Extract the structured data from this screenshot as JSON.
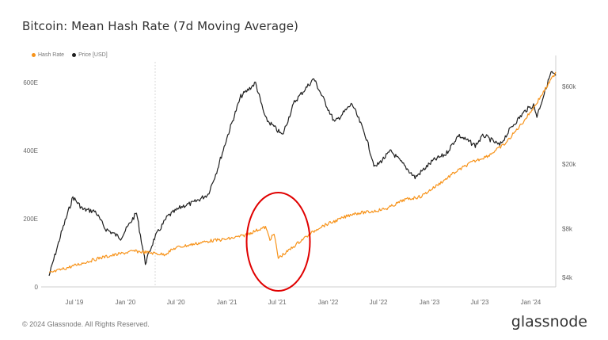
{
  "chart_data": {
    "type": "line",
    "title": "Bitcoin: Mean Hash Rate (7d Moving Average)",
    "x_ticks": [
      "Jul '19",
      "Jan '20",
      "Jul '20",
      "Jan '21",
      "Jul '21",
      "Jan '22",
      "Jul '22",
      "Jan '23",
      "Jul '23",
      "Jan '24"
    ],
    "x_range": [
      "2019-04-01",
      "2024-03-31"
    ],
    "y_left": {
      "ticks": [
        "0",
        "200E",
        "400E",
        "600E"
      ],
      "tick_values": [
        0,
        200,
        400,
        600
      ],
      "range": [
        0,
        660
      ],
      "unit": "EH/s"
    },
    "y_right": {
      "ticks": [
        "$4k",
        "$8k",
        "$20k",
        "$60k"
      ],
      "tick_values": [
        4000,
        8000,
        20000,
        60000
      ],
      "range": [
        3500,
        85000
      ],
      "scale": "log"
    },
    "grid": false,
    "legend_position": "top-left",
    "series": [
      {
        "name": "Hash Rate",
        "color": "#f7931a",
        "axis": "left",
        "points": [
          [
            "2019-04-01",
            40
          ],
          [
            "2019-06-01",
            55
          ],
          [
            "2019-08-01",
            70
          ],
          [
            "2019-10-01",
            85
          ],
          [
            "2019-12-01",
            95
          ],
          [
            "2020-02-01",
            105
          ],
          [
            "2020-04-01",
            100
          ],
          [
            "2020-05-20",
            95
          ],
          [
            "2020-07-01",
            115
          ],
          [
            "2020-09-01",
            125
          ],
          [
            "2020-11-01",
            135
          ],
          [
            "2021-01-01",
            140
          ],
          [
            "2021-03-01",
            150
          ],
          [
            "2021-05-01",
            170
          ],
          [
            "2021-05-20",
            175
          ],
          [
            "2021-06-05",
            140
          ],
          [
            "2021-06-20",
            155
          ],
          [
            "2021-07-05",
            85
          ],
          [
            "2021-08-01",
            100
          ],
          [
            "2021-10-01",
            140
          ],
          [
            "2021-12-01",
            175
          ],
          [
            "2022-02-01",
            195
          ],
          [
            "2022-04-01",
            215
          ],
          [
            "2022-06-01",
            220
          ],
          [
            "2022-08-01",
            230
          ],
          [
            "2022-10-01",
            255
          ],
          [
            "2022-12-01",
            265
          ],
          [
            "2023-02-01",
            300
          ],
          [
            "2023-04-01",
            335
          ],
          [
            "2023-06-01",
            365
          ],
          [
            "2023-08-01",
            385
          ],
          [
            "2023-10-01",
            420
          ],
          [
            "2023-12-01",
            480
          ],
          [
            "2024-01-15",
            530
          ],
          [
            "2024-03-01",
            590
          ],
          [
            "2024-03-31",
            630
          ]
        ]
      },
      {
        "name": "Price [USD]",
        "color": "#1f1f1f",
        "axis": "right",
        "points": [
          [
            "2019-04-01",
            4100
          ],
          [
            "2019-05-15",
            7500
          ],
          [
            "2019-06-26",
            12500
          ],
          [
            "2019-08-01",
            10500
          ],
          [
            "2019-09-15",
            10200
          ],
          [
            "2019-10-20",
            8000
          ],
          [
            "2019-12-15",
            7000
          ],
          [
            "2020-02-10",
            10000
          ],
          [
            "2020-03-13",
            4900
          ],
          [
            "2020-04-15",
            7000
          ],
          [
            "2020-06-01",
            9500
          ],
          [
            "2020-07-25",
            11000
          ],
          [
            "2020-09-01",
            11500
          ],
          [
            "2020-10-25",
            13000
          ],
          [
            "2020-11-25",
            18000
          ],
          [
            "2021-01-01",
            29000
          ],
          [
            "2021-02-20",
            52000
          ],
          [
            "2021-04-14",
            63000
          ],
          [
            "2021-05-20",
            38000
          ],
          [
            "2021-07-20",
            30000
          ],
          [
            "2021-09-01",
            48000
          ],
          [
            "2021-11-10",
            67000
          ],
          [
            "2022-01-24",
            36000
          ],
          [
            "2022-03-28",
            47000
          ],
          [
            "2022-05-15",
            30000
          ],
          [
            "2022-06-18",
            19000
          ],
          [
            "2022-08-15",
            24000
          ],
          [
            "2022-11-10",
            16500
          ],
          [
            "2023-01-15",
            21000
          ],
          [
            "2023-03-01",
            23000
          ],
          [
            "2023-04-15",
            30000
          ],
          [
            "2023-06-15",
            26000
          ],
          [
            "2023-07-15",
            30000
          ],
          [
            "2023-09-11",
            26000
          ],
          [
            "2023-10-25",
            34000
          ],
          [
            "2023-12-15",
            43000
          ],
          [
            "2024-01-11",
            46000
          ],
          [
            "2024-01-23",
            39500
          ],
          [
            "2024-02-15",
            52000
          ],
          [
            "2024-03-14",
            73000
          ],
          [
            "2024-03-31",
            70000
          ]
        ]
      }
    ]
  },
  "footer": {
    "copyright": "© 2024 Glassnode. All Rights Reserved.",
    "brand": "glassnode"
  }
}
